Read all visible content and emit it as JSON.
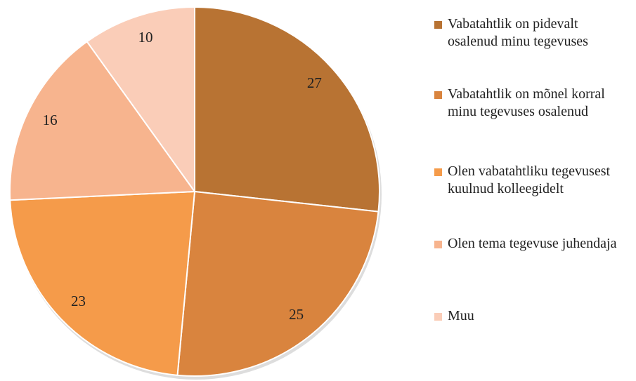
{
  "chart_data": {
    "type": "pie",
    "categories": [
      "Vabatahtlik on pidevalt osalenud minu tegevuses",
      "Vabatahtlik on mõnel korral minu tegevuses osalenud",
      "Olen vabatahtliku tegevusest kuulnud kolleegidelt",
      "Olen tema tegevuse juhendaja",
      "Muu"
    ],
    "values": [
      27,
      25,
      23,
      16,
      10
    ],
    "colors": [
      "#b87333",
      "#d9843e",
      "#f59b4a",
      "#f7b48e",
      "#facdb8"
    ],
    "legend": "right"
  }
}
